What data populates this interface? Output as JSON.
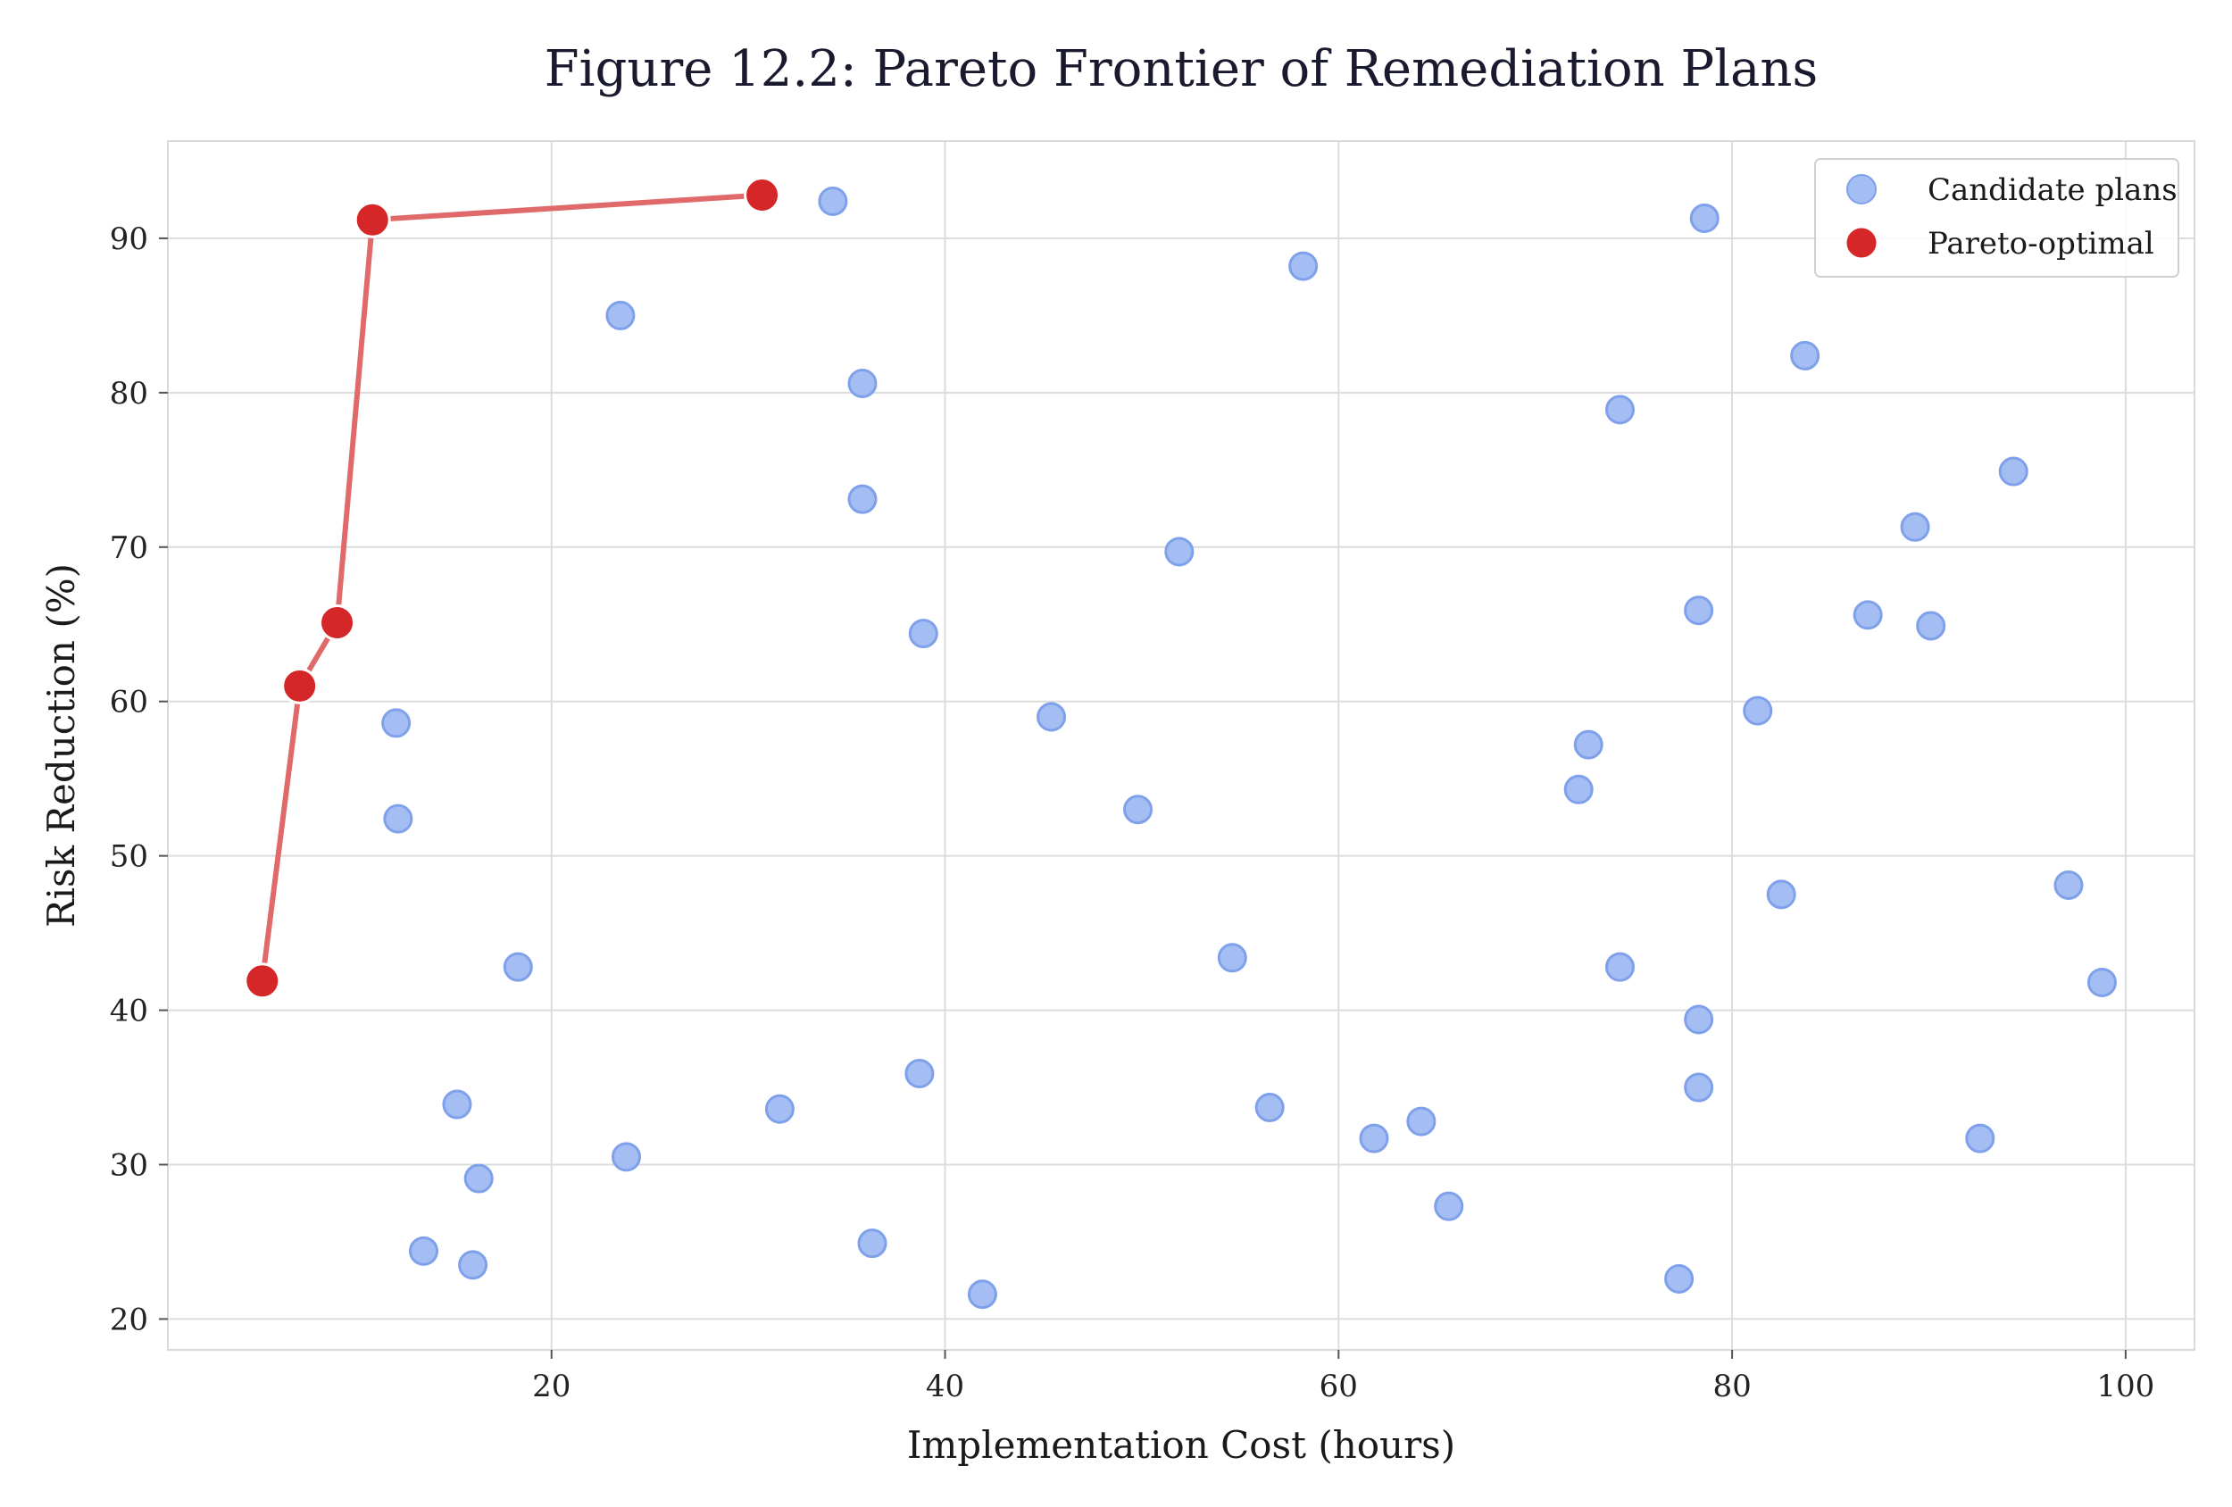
{
  "chart_data": {
    "type": "scatter",
    "title": "Figure 12.2: Pareto Frontier of Remediation Plans",
    "xlabel": "Implementation Cost (hours)",
    "ylabel": "Risk Reduction (%)",
    "xlim": [
      0.5,
      103.5
    ],
    "ylim": [
      18,
      96.3
    ],
    "xticks": [
      20,
      40,
      60,
      80,
      100
    ],
    "yticks": [
      20,
      30,
      40,
      50,
      60,
      70,
      80,
      90
    ],
    "grid": true,
    "legend_position": "top-right",
    "colors": {
      "candidate_fill": "#a4bdf3",
      "candidate_edge": "#7fa0ea",
      "pareto_fill": "#d62728",
      "frontier_line": "#e06a6a"
    },
    "series": [
      {
        "name": "Candidate plans",
        "points": [
          [
            12.1,
            58.6
          ],
          [
            12.2,
            52.4
          ],
          [
            13.5,
            24.4
          ],
          [
            15.2,
            33.9
          ],
          [
            16.0,
            23.5
          ],
          [
            16.3,
            29.1
          ],
          [
            18.3,
            42.8
          ],
          [
            23.5,
            85.0
          ],
          [
            23.8,
            30.5
          ],
          [
            31.6,
            33.6
          ],
          [
            34.3,
            92.4
          ],
          [
            35.8,
            80.6
          ],
          [
            35.8,
            73.1
          ],
          [
            36.3,
            24.9
          ],
          [
            38.9,
            64.4
          ],
          [
            38.7,
            35.9
          ],
          [
            41.9,
            21.6
          ],
          [
            45.4,
            59.0
          ],
          [
            49.8,
            53.0
          ],
          [
            51.9,
            69.7
          ],
          [
            54.6,
            43.4
          ],
          [
            56.5,
            33.7
          ],
          [
            58.2,
            88.2
          ],
          [
            61.8,
            31.7
          ],
          [
            64.2,
            32.8
          ],
          [
            65.6,
            27.3
          ],
          [
            72.2,
            54.3
          ],
          [
            72.7,
            57.2
          ],
          [
            74.3,
            78.9
          ],
          [
            74.3,
            42.8
          ],
          [
            77.3,
            22.6
          ],
          [
            78.3,
            65.9
          ],
          [
            78.3,
            39.4
          ],
          [
            78.3,
            35.0
          ],
          [
            78.6,
            91.3
          ],
          [
            81.3,
            59.4
          ],
          [
            82.5,
            47.5
          ],
          [
            83.7,
            82.4
          ],
          [
            86.9,
            65.6
          ],
          [
            89.3,
            71.3
          ],
          [
            90.1,
            64.9
          ],
          [
            92.6,
            31.7
          ],
          [
            94.3,
            74.9
          ],
          [
            97.1,
            48.1
          ],
          [
            98.8,
            41.8
          ]
        ]
      },
      {
        "name": "Pareto-optimal",
        "points": [
          [
            5.3,
            41.9
          ],
          [
            7.2,
            61.0
          ],
          [
            9.1,
            65.1
          ],
          [
            10.9,
            91.2
          ],
          [
            30.7,
            92.8
          ]
        ]
      }
    ]
  }
}
